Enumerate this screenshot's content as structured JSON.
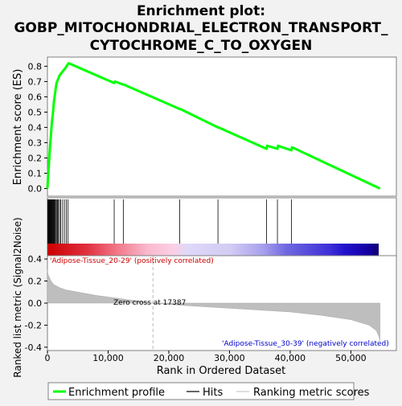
{
  "chart_data": {
    "type": "line",
    "title": "Enrichment plot:\nGOBP_MITOCHONDRIAL_ELECTRON_TRANSPORT_\nCYTOCHROME_C_TO_OXYGEN",
    "es_panel": {
      "ylabel": "Enrichment score (ES)",
      "ylim": [
        -0.05,
        0.86
      ],
      "yticks": [
        0.0,
        0.1,
        0.2,
        0.3,
        0.4,
        0.5,
        0.6,
        0.7,
        0.8
      ],
      "ytick_labels": [
        "0.0",
        "0.1",
        "0.2",
        "0.3",
        "0.4",
        "0.5",
        "0.6",
        "0.7",
        "0.8"
      ],
      "series": [
        {
          "name": "Enrichment profile",
          "color": "#00ff00",
          "x": [
            0,
            150,
            300,
            450,
            600,
            750,
            900,
            1050,
            1250,
            1500,
            2000,
            2600,
            3000,
            3300,
            3500,
            11000,
            11100,
            12500,
            12600,
            21800,
            21900,
            28100,
            28200,
            36100,
            36200,
            37900,
            38000,
            40200,
            40300,
            54800
          ],
          "y": [
            0.0,
            0.1,
            0.2,
            0.29,
            0.36,
            0.44,
            0.49,
            0.56,
            0.62,
            0.69,
            0.74,
            0.77,
            0.79,
            0.81,
            0.82,
            0.69,
            0.7,
            0.68,
            0.68,
            0.52,
            0.52,
            0.4,
            0.4,
            0.26,
            0.28,
            0.26,
            0.28,
            0.25,
            0.27,
            0.0
          ]
        }
      ]
    },
    "hits": [
      50,
      120,
      200,
      280,
      360,
      440,
      520,
      600,
      680,
      760,
      850,
      950,
      1050,
      1150,
      1250,
      1350,
      1500,
      1650,
      1800,
      2000,
      2200,
      2500,
      2800,
      3100,
      3400,
      11000,
      12500,
      21800,
      28100,
      36100,
      37900,
      40200
    ],
    "ranking_panel": {
      "ylabel": "Ranked list metric (Signal2Noise)",
      "xlabel": "Rank in Ordered Dataset",
      "ylim": [
        -0.43,
        0.43
      ],
      "yticks": [
        -0.4,
        -0.2,
        0.0,
        0.2,
        0.4
      ],
      "ytick_labels": [
        "-0.4",
        "-0.2",
        "0.0",
        "0.2",
        "0.4"
      ],
      "xlim": [
        0,
        57500
      ],
      "xticks": [
        0,
        10000,
        20000,
        30000,
        40000,
        50000
      ],
      "xtick_labels": [
        "0",
        "10,000",
        "20,000",
        "30,000",
        "40,000",
        "50,000"
      ],
      "metric_profile": {
        "x": [
          0,
          100,
          500,
          1000,
          2000,
          3000,
          5000,
          8000,
          12000,
          17387,
          22000,
          28000,
          34000,
          40000,
          45000,
          50000,
          53000,
          54200,
          54600,
          54800
        ],
        "y": [
          0.3,
          0.26,
          0.21,
          0.17,
          0.14,
          0.12,
          0.1,
          0.07,
          0.04,
          0.0,
          -0.02,
          -0.04,
          -0.06,
          -0.08,
          -0.11,
          -0.15,
          -0.2,
          -0.25,
          -0.3,
          -0.34
        ]
      },
      "zero_cross_rank": 17387,
      "zero_cross_label": "Zero cross at 17387",
      "positive_label": "'Adipose-Tissue_20-29' (positively correlated)",
      "negative_label": "'Adipose-Tissue_30-39' (negatively correlated)"
    },
    "legend": [
      {
        "name": "Enrichment profile",
        "color": "#00ff00"
      },
      {
        "name": "Hits",
        "color": "#000000"
      },
      {
        "name": "Ranking metric scores",
        "color": "#bebebe"
      }
    ],
    "legend_placement": "bottom",
    "grid": false
  }
}
